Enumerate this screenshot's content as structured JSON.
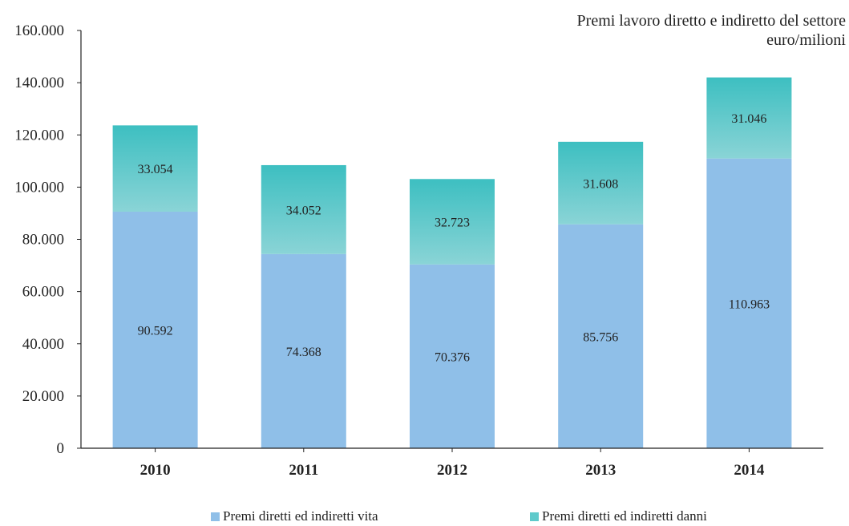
{
  "chart_data": {
    "type": "bar",
    "stacked": true,
    "title_lines": [
      "Premi lavoro diretto e indiretto del settore",
      "euro/milioni"
    ],
    "categories": [
      "2010",
      "2011",
      "2012",
      "2013",
      "2014"
    ],
    "series": [
      {
        "name": "Premi diretti ed indiretti vita",
        "values": [
          90592,
          74368,
          70376,
          85756,
          110963
        ],
        "labels": [
          "90.592",
          "74.368",
          "70.376",
          "85.756",
          "110.963"
        ],
        "color": "#8fbfe8"
      },
      {
        "name": "Premi diretti ed indiretti danni",
        "values": [
          33054,
          34052,
          32723,
          31608,
          31046
        ],
        "labels": [
          "33.054",
          "34.052",
          "32.723",
          "31.608",
          "31.046"
        ],
        "color": "#5fcacb"
      }
    ],
    "y_ticks": [
      0,
      20000,
      40000,
      60000,
      80000,
      100000,
      120000,
      140000,
      160000
    ],
    "y_tick_labels": [
      "0",
      "20.000",
      "40.000",
      "60.000",
      "80.000",
      "100.000",
      "120.000",
      "140.000",
      "160.000"
    ],
    "ylim": [
      0,
      160000
    ],
    "grid": false,
    "legend_position": "bottom"
  }
}
